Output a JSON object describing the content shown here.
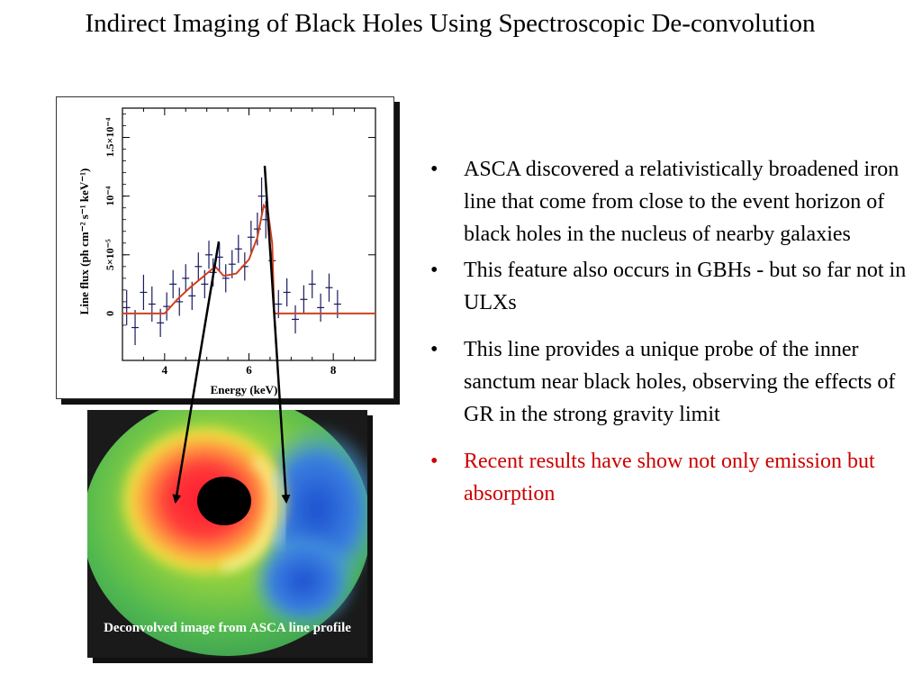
{
  "title": "Indirect Imaging of Black Holes Using Spectroscopic De-convolution",
  "bullets": [
    {
      "text": "ASCA discovered a relativistically broadened iron line that come from close to the event horizon of black holes in the nucleus of nearby galaxies",
      "color": "#000000"
    },
    {
      "text": "This feature also occurs in GBHs - but so far not in ULXs",
      "color": "#000000"
    },
    {
      "text": "This line provides a unique probe of the inner sanctum near black holes, observing the effects of GR in the strong gravity limit",
      "color": "#000000"
    },
    {
      "text": "Recent results have show not only emission but absorption",
      "color": "#cc0000"
    }
  ],
  "bullet_symbol": "•",
  "image_caption": "Deconvolved image from ASCA line profile",
  "chart_data": {
    "type": "line",
    "xlabel": "Energy (keV)",
    "ylabel": "Line flux (ph cm⁻² s⁻¹ keV⁻¹)",
    "xlim": [
      3,
      9
    ],
    "ylim": [
      -4e-05,
      0.000175
    ],
    "x_ticks": [
      "4",
      "6",
      "8"
    ],
    "y_ticks": [
      "0",
      "5×10⁻⁵",
      "10⁻⁴",
      "1.5×10⁻⁴"
    ],
    "y_tick_values": [
      0,
      5e-05,
      0.0001,
      0.00015
    ],
    "model_line": {
      "color": "#d04020",
      "x": [
        3.0,
        4.0,
        4.3,
        4.6,
        5.0,
        5.2,
        5.4,
        5.7,
        6.0,
        6.2,
        6.35,
        6.45,
        6.55,
        6.6,
        6.7,
        9.0
      ],
      "y": [
        0,
        0,
        1.2e-05,
        2.2e-05,
        3.4e-05,
        4e-05,
        3.2e-05,
        3.4e-05,
        4.6e-05,
        6.5e-05,
        9.2e-05,
        8.7e-05,
        6e-05,
        0,
        0,
        0
      ]
    },
    "data_points": {
      "color": "#1a1a60",
      "x": [
        3.1,
        3.3,
        3.5,
        3.7,
        3.9,
        4.05,
        4.2,
        4.35,
        4.5,
        4.65,
        4.8,
        4.95,
        5.05,
        5.15,
        5.3,
        5.45,
        5.6,
        5.75,
        5.9,
        6.05,
        6.2,
        6.3,
        6.4,
        6.55,
        6.7,
        6.9,
        7.1,
        7.3,
        7.5,
        7.7,
        7.9,
        8.1
      ],
      "y": [
        5e-06,
        -1.2e-05,
        1.8e-05,
        8e-06,
        -8e-06,
        6e-06,
        2.5e-05,
        1e-05,
        3e-05,
        1.5e-05,
        4e-05,
        2.5e-05,
        5e-05,
        3.5e-05,
        4.8e-05,
        3e-05,
        4.2e-05,
        5.5e-05,
        4e-05,
        6.5e-05,
        7.2e-05,
        0.0001,
        8e-05,
        4.5e-05,
        8e-06,
        1.8e-05,
        -5e-06,
        1.2e-05,
        2.5e-05,
        5e-06,
        2.2e-05,
        8e-06
      ],
      "err": [
        1.5e-05,
        1.5e-05,
        1.5e-05,
        1.5e-05,
        1.2e-05,
        1.2e-05,
        1.2e-05,
        1.2e-05,
        1.2e-05,
        1.2e-05,
        1.2e-05,
        1.2e-05,
        1.2e-05,
        1.2e-05,
        1.2e-05,
        1.2e-05,
        1.2e-05,
        1.2e-05,
        1.2e-05,
        1.4e-05,
        1.4e-05,
        1.6e-05,
        1.6e-05,
        1.4e-05,
        1.2e-05,
        1.2e-05,
        1.2e-05,
        1.2e-05,
        1.2e-05,
        1.2e-05,
        1.2e-05,
        1.2e-05
      ]
    },
    "grid": false,
    "legend": "none"
  }
}
